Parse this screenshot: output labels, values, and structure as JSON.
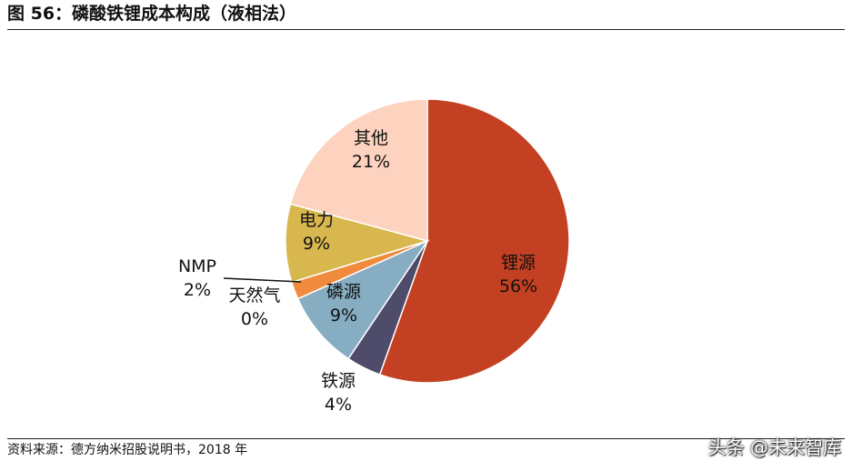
{
  "header": {
    "title": "图 56：磷酸铁锂成本构成（液相法）"
  },
  "footer": {
    "source": "资料来源：德方纳米招股说明书，2018 年",
    "watermark": "头条 @未来智库"
  },
  "chart_data": {
    "type": "pie",
    "start_angle_deg": 0,
    "direction": "clockwise",
    "slices": [
      {
        "label": "锂源",
        "pct_label": "56%",
        "value": 56,
        "color": "#C44022",
        "label_color": "#111111"
      },
      {
        "label": "铁源",
        "pct_label": "4%",
        "value": 4,
        "color": "#4E4B6B",
        "label_color": "#111111"
      },
      {
        "label": "磷源",
        "pct_label": "9%",
        "value": 9,
        "color": "#86ADC2",
        "label_color": "#111111"
      },
      {
        "label": "天然气",
        "pct_label": "0%",
        "value": 0,
        "color": "#9AAE5A",
        "label_color": "#111111"
      },
      {
        "label": "NMP",
        "pct_label": "2%",
        "value": 2,
        "color": "#F08A3C",
        "label_color": "#111111"
      },
      {
        "label": "电力",
        "pct_label": "9%",
        "value": 9,
        "color": "#D8B74E",
        "label_color": "#111111"
      },
      {
        "label": "其他",
        "pct_label": "21%",
        "value": 21,
        "color": "#FDD3C0",
        "label_color": "#111111"
      }
    ]
  }
}
